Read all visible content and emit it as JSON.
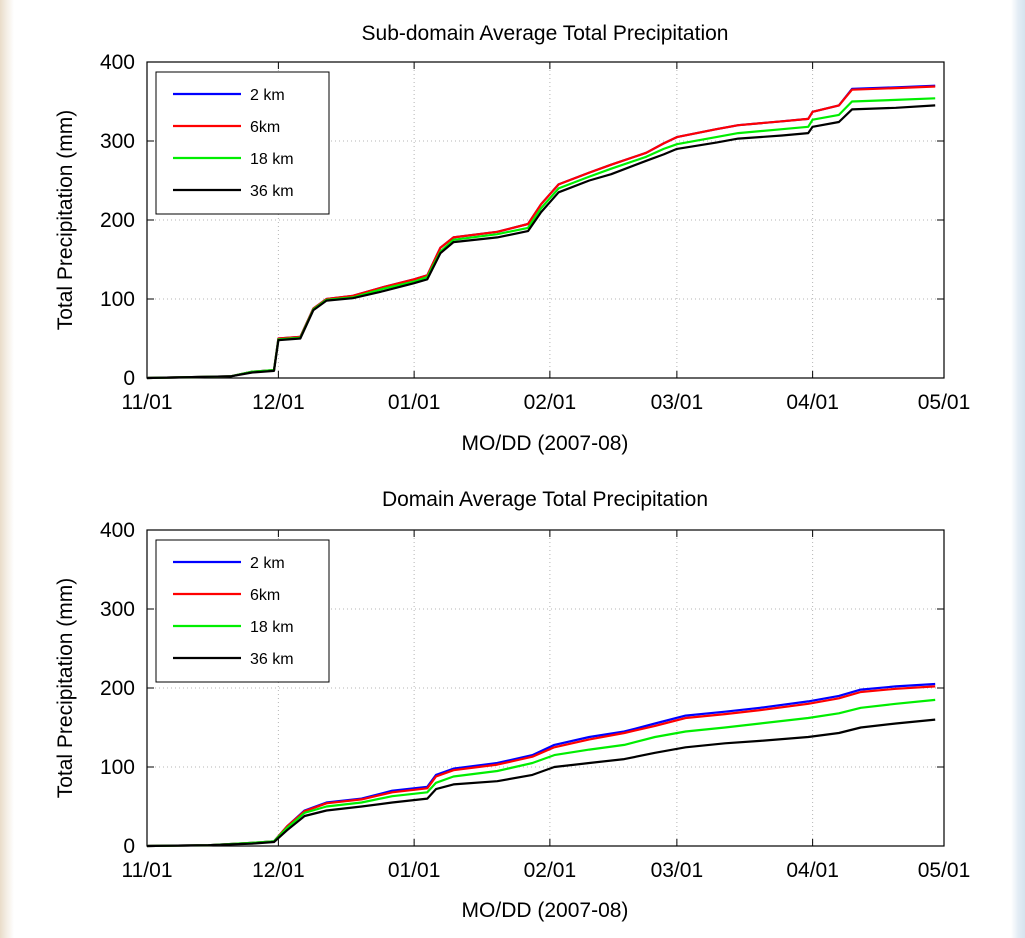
{
  "chart_data": [
    {
      "type": "line",
      "title": "Sub-domain Average Total Precipitation",
      "xlabel": "MO/DD (2007-08)",
      "ylabel": "Total Precipitation (mm)",
      "xlim": [
        "2007-11-01",
        "2008-05-01"
      ],
      "ylim": [
        0,
        400
      ],
      "x_ticks": [
        "11/01",
        "12/01",
        "01/01",
        "02/01",
        "03/01",
        "04/01",
        "05/01"
      ],
      "y_ticks": [
        0,
        100,
        200,
        300,
        400
      ],
      "grid": true,
      "legend": "top-left",
      "x": [
        "2007-11-01",
        "2007-11-20",
        "2007-11-25",
        "2007-11-30",
        "2007-12-01",
        "2007-12-06",
        "2007-12-09",
        "2007-12-12",
        "2007-12-18",
        "2007-12-25",
        "2008-01-01",
        "2008-01-04",
        "2008-01-07",
        "2008-01-10",
        "2008-01-20",
        "2008-01-27",
        "2008-01-30",
        "2008-02-03",
        "2008-02-10",
        "2008-02-15",
        "2008-02-23",
        "2008-02-27",
        "2008-03-01",
        "2008-03-10",
        "2008-03-15",
        "2008-03-25",
        "2008-03-31",
        "2008-04-01",
        "2008-04-07",
        "2008-04-10",
        "2008-04-20",
        "2008-04-29"
      ],
      "series": [
        {
          "name": "2 km",
          "color": "#0000ff",
          "values": [
            0,
            2,
            8,
            10,
            50,
            52,
            88,
            100,
            104,
            115,
            125,
            130,
            165,
            178,
            185,
            195,
            220,
            245,
            260,
            270,
            285,
            297,
            305,
            315,
            320,
            325,
            328,
            337,
            345,
            366,
            368,
            370
          ]
        },
        {
          "name": "6km",
          "color": "#ff0000",
          "values": [
            0,
            2,
            8,
            10,
            50,
            52,
            88,
            100,
            104,
            115,
            125,
            130,
            165,
            178,
            185,
            195,
            220,
            245,
            260,
            270,
            285,
            297,
            305,
            315,
            320,
            325,
            328,
            337,
            345,
            365,
            367,
            369
          ]
        },
        {
          "name": "18 km",
          "color": "#00ee00",
          "values": [
            0,
            2,
            8,
            10,
            49,
            51,
            87,
            99,
            102,
            113,
            122,
            128,
            160,
            175,
            182,
            190,
            215,
            240,
            255,
            265,
            280,
            290,
            296,
            305,
            310,
            315,
            318,
            327,
            333,
            350,
            352,
            354
          ]
        },
        {
          "name": "36 km",
          "color": "#000000",
          "values": [
            0,
            2,
            7,
            9,
            48,
            50,
            86,
            98,
            101,
            110,
            120,
            125,
            158,
            172,
            178,
            186,
            210,
            235,
            250,
            258,
            275,
            283,
            290,
            298,
            303,
            307,
            310,
            318,
            324,
            340,
            342,
            345
          ]
        }
      ]
    },
    {
      "type": "line",
      "title": "Domain Average Total Precipitation",
      "xlabel": "MO/DD (2007-08)",
      "ylabel": "Total Precipitation (mm)",
      "xlim": [
        "2007-11-01",
        "2008-05-01"
      ],
      "ylim": [
        0,
        400
      ],
      "x_ticks": [
        "11/01",
        "12/01",
        "01/01",
        "02/01",
        "03/01",
        "04/01",
        "05/01"
      ],
      "y_ticks": [
        0,
        100,
        200,
        300,
        400
      ],
      "grid": true,
      "legend": "top-left",
      "x": [
        "2007-11-01",
        "2007-11-15",
        "2007-11-25",
        "2007-11-30",
        "2007-12-03",
        "2007-12-07",
        "2007-12-12",
        "2007-12-20",
        "2007-12-27",
        "2008-01-04",
        "2008-01-06",
        "2008-01-10",
        "2008-01-20",
        "2008-01-28",
        "2008-02-02",
        "2008-02-10",
        "2008-02-18",
        "2008-02-25",
        "2008-03-03",
        "2008-03-12",
        "2008-03-20",
        "2008-03-31",
        "2008-04-07",
        "2008-04-12",
        "2008-04-20",
        "2008-04-29"
      ],
      "series": [
        {
          "name": "2 km",
          "color": "#0000ff",
          "values": [
            0,
            1,
            4,
            6,
            25,
            45,
            55,
            60,
            70,
            75,
            90,
            98,
            105,
            115,
            128,
            138,
            145,
            155,
            165,
            170,
            175,
            183,
            190,
            198,
            202,
            205
          ]
        },
        {
          "name": "6km",
          "color": "#ff0000",
          "values": [
            0,
            1,
            4,
            6,
            25,
            44,
            54,
            59,
            68,
            73,
            88,
            96,
            103,
            113,
            125,
            135,
            143,
            152,
            162,
            167,
            172,
            180,
            187,
            195,
            199,
            202
          ]
        },
        {
          "name": "18 km",
          "color": "#00ee00",
          "values": [
            0,
            1,
            4,
            6,
            23,
            42,
            50,
            55,
            63,
            68,
            80,
            88,
            95,
            105,
            115,
            122,
            128,
            138,
            145,
            150,
            155,
            162,
            168,
            175,
            180,
            185
          ]
        },
        {
          "name": "36 km",
          "color": "#000000",
          "values": [
            0,
            1,
            3,
            5,
            20,
            38,
            45,
            50,
            55,
            60,
            72,
            78,
            82,
            90,
            100,
            105,
            110,
            118,
            125,
            130,
            133,
            138,
            143,
            150,
            155,
            160
          ]
        }
      ]
    }
  ]
}
